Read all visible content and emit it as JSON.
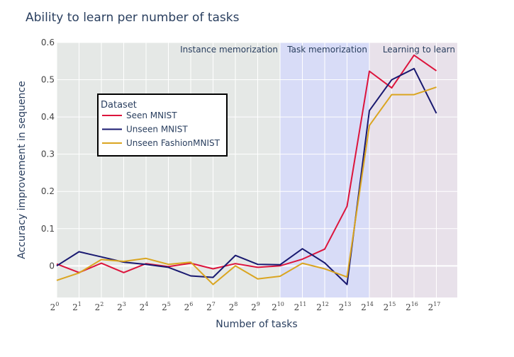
{
  "chart_data": {
    "type": "line",
    "title": "Ability to learn per number of tasks",
    "xlabel": "Number of tasks",
    "ylabel": "Accuracy improvement in sequence",
    "x_scale": "log2",
    "x_base": "2",
    "x_exponents": [
      0,
      1,
      2,
      3,
      4,
      5,
      6,
      7,
      8,
      9,
      10,
      11,
      12,
      13,
      14,
      15,
      16,
      17
    ],
    "ylim": [
      -0.085,
      0.6
    ],
    "yticks": [
      0,
      0.1,
      0.2,
      0.3,
      0.4,
      0.5,
      0.6
    ],
    "ytick_labels": [
      "0",
      "0.1",
      "0.2",
      "0.3",
      "0.4",
      "0.5",
      "0.6"
    ],
    "grid": true,
    "legend": {
      "title": "Dataset",
      "placement": "upper-left"
    },
    "regions": [
      {
        "label": "Instance memorization",
        "from_exp": 0,
        "to_exp": 10,
        "color": "#e5e8e6"
      },
      {
        "label": "Task memorization",
        "from_exp": 10,
        "to_exp": 14,
        "color": "#d8dcf7"
      },
      {
        "label": "Learning to learn",
        "from_exp": 14,
        "to_exp": 18,
        "color": "#e8e1ea"
      }
    ],
    "series": [
      {
        "name": "Seen MNIST",
        "color": "#dc143c",
        "values": [
          0.005,
          -0.018,
          0.007,
          -0.018,
          0.006,
          -0.002,
          0.007,
          -0.008,
          0.006,
          -0.004,
          0.0,
          0.018,
          0.045,
          0.16,
          0.523,
          0.478,
          0.566,
          0.524
        ]
      },
      {
        "name": "Unseen MNIST",
        "color": "#191970",
        "values": [
          0.0,
          0.038,
          0.024,
          0.01,
          0.004,
          -0.004,
          -0.027,
          -0.031,
          0.028,
          0.004,
          0.003,
          0.046,
          0.008,
          -0.05,
          0.417,
          0.5,
          0.53,
          0.41
        ]
      },
      {
        "name": "Unseen FashionMNIST",
        "color": "#daa520",
        "values": [
          -0.039,
          -0.019,
          0.017,
          0.012,
          0.02,
          0.004,
          0.01,
          -0.05,
          0.0,
          -0.035,
          -0.028,
          0.007,
          -0.008,
          -0.03,
          0.377,
          0.46,
          0.46,
          0.48
        ]
      }
    ]
  }
}
